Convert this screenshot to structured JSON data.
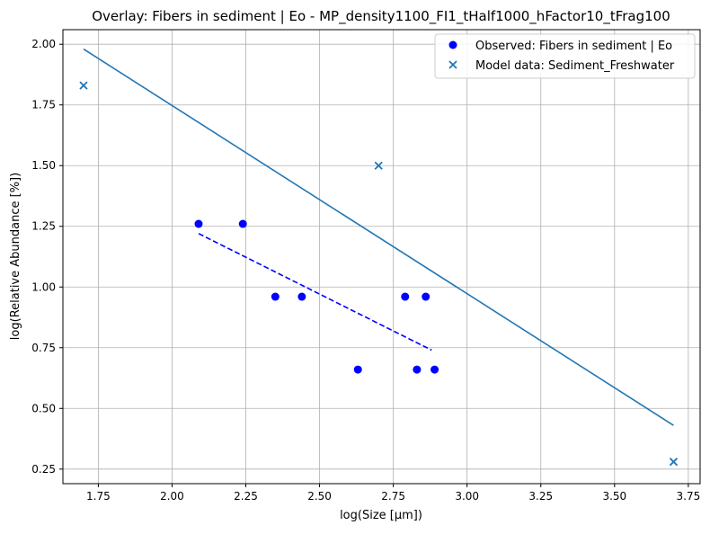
{
  "chart_data": {
    "type": "scatter",
    "title": "Overlay: Fibers in sediment | Eo - MP_density1100_FI1_tHalf1000_hFactor10_tFrag100",
    "xlabel": "log(Size [µm])",
    "ylabel": "log(Relative Abundance [%])",
    "xlim": [
      1.63,
      3.79
    ],
    "ylim": [
      0.19,
      2.06
    ],
    "xticks": [
      "1.75",
      "2.00",
      "2.25",
      "2.50",
      "2.75",
      "3.00",
      "3.25",
      "3.50",
      "3.75"
    ],
    "yticks": [
      "0.25",
      "0.50",
      "0.75",
      "1.00",
      "1.25",
      "1.50",
      "1.75",
      "2.00"
    ],
    "grid": true,
    "legend_position": "top-right",
    "series": [
      {
        "name": "Observed: Fibers in sediment | Eo",
        "kind": "scatter",
        "marker": "circle",
        "color": "#0000ff",
        "points": [
          [
            2.09,
            1.26
          ],
          [
            2.24,
            1.26
          ],
          [
            2.35,
            0.96
          ],
          [
            2.44,
            0.96
          ],
          [
            2.63,
            0.66
          ],
          [
            2.79,
            0.96
          ],
          [
            2.83,
            0.66
          ],
          [
            2.86,
            0.96
          ],
          [
            2.89,
            0.66
          ]
        ]
      },
      {
        "name": "Model data: Sediment_Freshwater",
        "kind": "scatter",
        "marker": "x",
        "color": "#1f77b4",
        "points": [
          [
            1.7,
            1.83
          ],
          [
            2.7,
            1.5
          ],
          [
            3.7,
            0.28
          ]
        ]
      },
      {
        "kind": "line",
        "style": "dashed",
        "color": "#0000ff",
        "points": [
          [
            2.09,
            1.22
          ],
          [
            2.88,
            0.74
          ]
        ]
      },
      {
        "kind": "line",
        "style": "solid",
        "color": "#1f77b4",
        "points": [
          [
            1.7,
            1.98
          ],
          [
            3.7,
            0.43
          ]
        ]
      }
    ]
  }
}
